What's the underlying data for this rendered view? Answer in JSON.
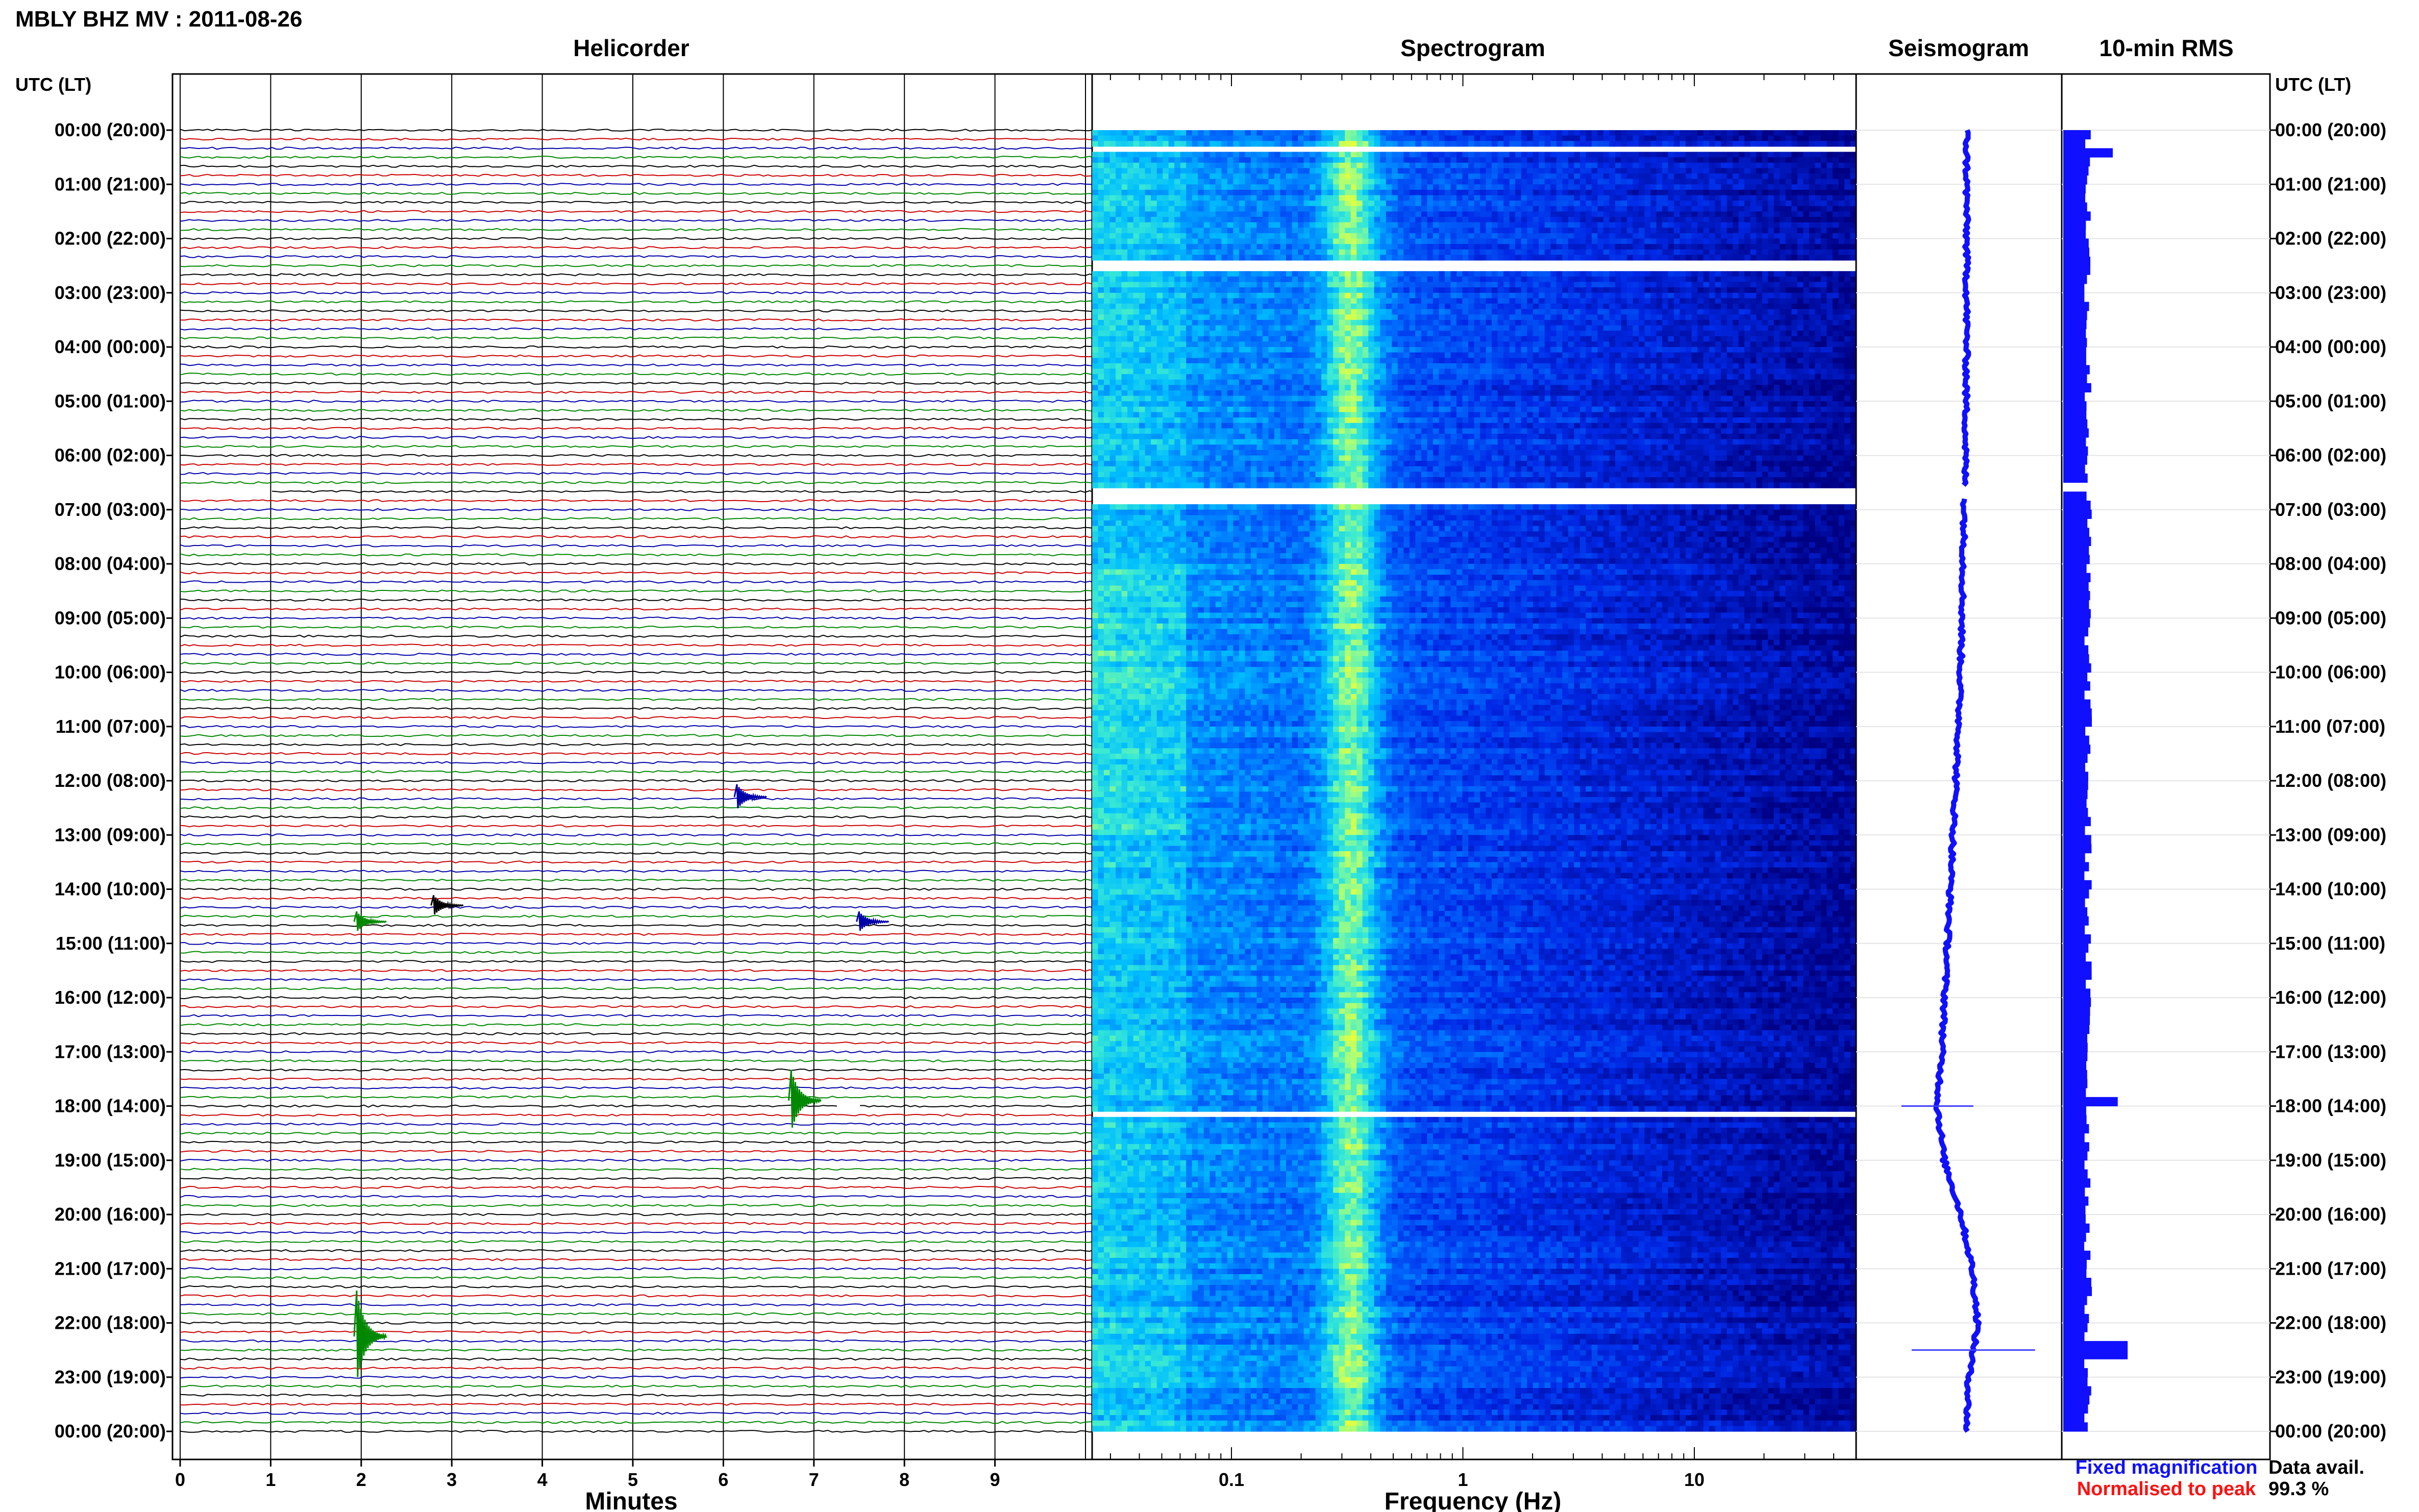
{
  "title": "MBLY BHZ MV : 2011-08-26",
  "panels": {
    "helicorder": "Helicorder",
    "spectrogram": "Spectrogram",
    "seismogram": "Seismogram",
    "rms": "10-min RMS"
  },
  "time_axis_label": "UTC (LT)",
  "time_ticks": [
    "00:00 (20:00)",
    "01:00 (21:00)",
    "02:00 (22:00)",
    "03:00 (23:00)",
    "04:00 (00:00)",
    "05:00 (01:00)",
    "06:00 (02:00)",
    "07:00 (03:00)",
    "08:00 (04:00)",
    "09:00 (05:00)",
    "10:00 (06:00)",
    "11:00 (07:00)",
    "12:00 (08:00)",
    "13:00 (09:00)",
    "14:00 (10:00)",
    "15:00 (11:00)",
    "16:00 (12:00)",
    "17:00 (13:00)",
    "18:00 (14:00)",
    "19:00 (15:00)",
    "20:00 (16:00)",
    "21:00 (17:00)",
    "22:00 (18:00)",
    "23:00 (19:00)",
    "00:00 (20:00)"
  ],
  "legend": {
    "fixed": "Fixed magnification",
    "fixed_color": "#1010ff",
    "normalised": "Normalised to peak",
    "normalised_color": "#ff1010"
  },
  "data_avail": {
    "label": "Data avail.",
    "value": "99.3 %"
  },
  "chart_data": [
    {
      "type": "line",
      "name": "Helicorder",
      "xlabel": "Minutes",
      "x_ticks": [
        "0",
        "1",
        "2",
        "3",
        "4",
        "5",
        "6",
        "7",
        "8",
        "9"
      ],
      "xlim": [
        0,
        10
      ],
      "ylim_hours": [
        0,
        24
      ],
      "rows_per_hour": 6,
      "trace_colors": [
        "#000000",
        "#cc0000",
        "#0000aa",
        "#008800"
      ],
      "events": [
        {
          "hour": 22.25,
          "minute": 1.95,
          "color": "#008800",
          "amplitude": 0.9
        },
        {
          "hour": 17.9,
          "minute": 6.75,
          "color": "#008800",
          "amplitude": 0.6
        },
        {
          "hour": 14.6,
          "minute": 1.95,
          "color": "#008800",
          "amplitude": 0.2
        },
        {
          "hour": 14.3,
          "minute": 2.8,
          "color": "#000000",
          "amplitude": 0.2
        },
        {
          "hour": 14.6,
          "minute": 7.5,
          "color": "#0000aa",
          "amplitude": 0.2
        },
        {
          "hour": 12.3,
          "minute": 6.15,
          "color": "#0000aa",
          "amplitude": 0.25
        }
      ],
      "gaps": [
        {
          "hour": 6.65,
          "minute_from": 0,
          "minute_to": 1.0
        },
        {
          "hour": 17.95,
          "minute_from": 7.3,
          "minute_to": 7.5
        }
      ]
    },
    {
      "type": "heatmap",
      "name": "Spectrogram",
      "xlabel": "Frequency (Hz)",
      "x_scale": "log",
      "xlim": [
        0.025,
        50
      ],
      "x_ticks": [
        "0.1",
        "1",
        "10"
      ],
      "x_tick_values": [
        0.1,
        1,
        10
      ],
      "ylim_hours": [
        0,
        24
      ],
      "peak_frequency_hz": 0.33,
      "gaps_hours": [
        0.35,
        2.45,
        6.7,
        18.1
      ]
    },
    {
      "type": "line",
      "name": "Seismogram",
      "ylim_hours": [
        0,
        24
      ],
      "offset_points": [
        [
          0,
          0.0
        ],
        [
          2,
          0.0
        ],
        [
          4,
          0.0
        ],
        [
          6,
          -0.01
        ],
        [
          7,
          -0.02
        ],
        [
          9,
          -0.04
        ],
        [
          11,
          -0.07
        ],
        [
          13,
          -0.12
        ],
        [
          15,
          -0.17
        ],
        [
          17,
          -0.22
        ],
        [
          18,
          -0.26
        ],
        [
          19,
          -0.2
        ],
        [
          20,
          -0.05
        ],
        [
          21,
          0.05
        ],
        [
          22,
          0.1
        ],
        [
          23,
          0.02
        ],
        [
          24,
          0.0
        ]
      ],
      "gap_hours": [
        6.6,
        6.75
      ],
      "spikes": [
        {
          "hour": 18.0,
          "width": 0.35
        },
        {
          "hour": 22.5,
          "width": 0.6
        }
      ]
    },
    {
      "type": "bar",
      "name": "10-min RMS",
      "ylim_hours": [
        0,
        24
      ],
      "bins_per_hour": 6,
      "base_level": 0.25,
      "peaks": [
        {
          "hour": 0.35,
          "value": 0.5
        },
        {
          "hour": 17.9,
          "value": 0.55
        },
        {
          "hour": 22.5,
          "value": 0.65
        }
      ],
      "gap_hour": 6.65
    }
  ]
}
